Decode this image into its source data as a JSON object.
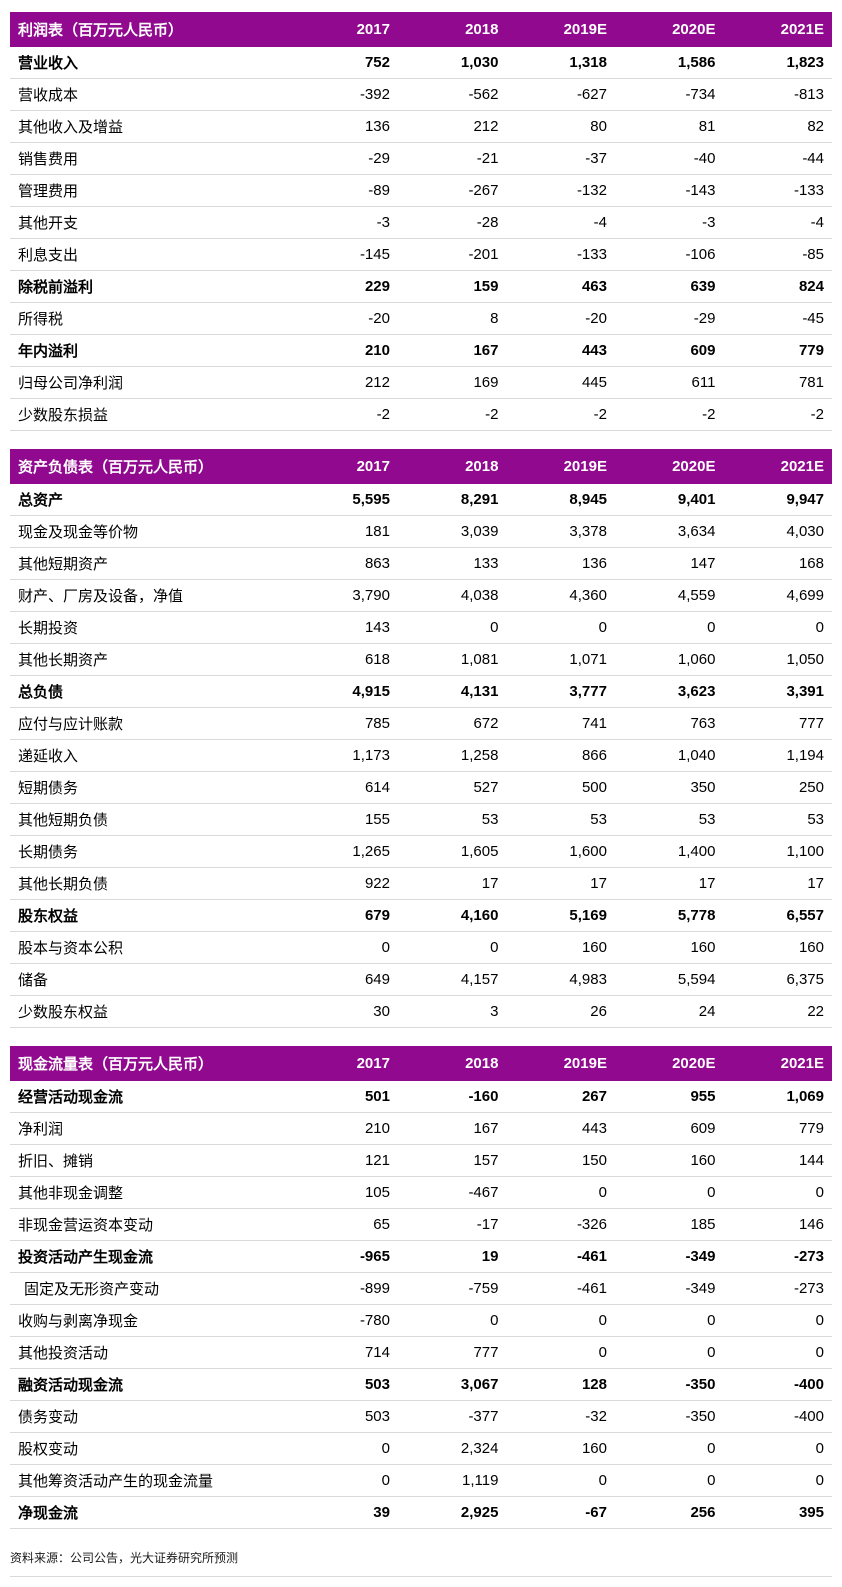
{
  "colors": {
    "header_bg": "#90098E",
    "header_text": "#FFFFFF",
    "row_border": "#D9D9D9"
  },
  "footer": {
    "source": "资料来源：公司公告，光大证券研究所预测"
  },
  "tables": [
    {
      "title": "利润表（百万元人民币）",
      "columns": [
        "2017",
        "2018",
        "2019E",
        "2020E",
        "2021E"
      ],
      "rows": [
        {
          "label": "营业收入",
          "values": [
            "752",
            "1,030",
            "1,318",
            "1,586",
            "1,823"
          ],
          "bold": true
        },
        {
          "label": "营收成本",
          "values": [
            "-392",
            "-562",
            "-627",
            "-734",
            "-813"
          ],
          "bold": false
        },
        {
          "label": "其他收入及增益",
          "values": [
            "136",
            "212",
            "80",
            "81",
            "82"
          ],
          "bold": false
        },
        {
          "label": "销售费用",
          "values": [
            "-29",
            "-21",
            "-37",
            "-40",
            "-44"
          ],
          "bold": false
        },
        {
          "label": "管理费用",
          "values": [
            "-89",
            "-267",
            "-132",
            "-143",
            "-133"
          ],
          "bold": false
        },
        {
          "label": "其他开支",
          "values": [
            "-3",
            "-28",
            "-4",
            "-3",
            "-4"
          ],
          "bold": false
        },
        {
          "label": "利息支出",
          "values": [
            "-145",
            "-201",
            "-133",
            "-106",
            "-85"
          ],
          "bold": false
        },
        {
          "label": "除税前溢利",
          "values": [
            "229",
            "159",
            "463",
            "639",
            "824"
          ],
          "bold": true
        },
        {
          "label": "所得税",
          "values": [
            "-20",
            "8",
            "-20",
            "-29",
            "-45"
          ],
          "bold": false
        },
        {
          "label": "年内溢利",
          "values": [
            "210",
            "167",
            "443",
            "609",
            "779"
          ],
          "bold": true
        },
        {
          "label": "归母公司净利润",
          "values": [
            "212",
            "169",
            "445",
            "611",
            "781"
          ],
          "bold": false
        },
        {
          "label": "少数股东损益",
          "values": [
            "-2",
            "-2",
            "-2",
            "-2",
            "-2"
          ],
          "bold": false
        }
      ]
    },
    {
      "title": "资产负债表（百万元人民币）",
      "columns": [
        "2017",
        "2018",
        "2019E",
        "2020E",
        "2021E"
      ],
      "rows": [
        {
          "label": "总资产",
          "values": [
            "5,595",
            "8,291",
            "8,945",
            "9,401",
            "9,947"
          ],
          "bold": true
        },
        {
          "label": "现金及现金等价物",
          "values": [
            "181",
            "3,039",
            "3,378",
            "3,634",
            "4,030"
          ],
          "bold": false
        },
        {
          "label": "其他短期资产",
          "values": [
            "863",
            "133",
            "136",
            "147",
            "168"
          ],
          "bold": false
        },
        {
          "label": "财产、厂房及设备，净值",
          "values": [
            "3,790",
            "4,038",
            "4,360",
            "4,559",
            "4,699"
          ],
          "bold": false
        },
        {
          "label": "长期投资",
          "values": [
            "143",
            "0",
            "0",
            "0",
            "0"
          ],
          "bold": false
        },
        {
          "label": "其他长期资产",
          "values": [
            "618",
            "1,081",
            "1,071",
            "1,060",
            "1,050"
          ],
          "bold": false
        },
        {
          "label": "总负债",
          "values": [
            "4,915",
            "4,131",
            "3,777",
            "3,623",
            "3,391"
          ],
          "bold": true
        },
        {
          "label": "应付与应计账款",
          "values": [
            "785",
            "672",
            "741",
            "763",
            "777"
          ],
          "bold": false
        },
        {
          "label": "递延收入",
          "values": [
            "1,173",
            "1,258",
            "866",
            "1,040",
            "1,194"
          ],
          "bold": false
        },
        {
          "label": "短期债务",
          "values": [
            "614",
            "527",
            "500",
            "350",
            "250"
          ],
          "bold": false
        },
        {
          "label": "其他短期负债",
          "values": [
            "155",
            "53",
            "53",
            "53",
            "53"
          ],
          "bold": false
        },
        {
          "label": "长期债务",
          "values": [
            "1,265",
            "1,605",
            "1,600",
            "1,400",
            "1,100"
          ],
          "bold": false
        },
        {
          "label": "其他长期负债",
          "values": [
            "922",
            "17",
            "17",
            "17",
            "17"
          ],
          "bold": false
        },
        {
          "label": "股东权益",
          "values": [
            "679",
            "4,160",
            "5,169",
            "5,778",
            "6,557"
          ],
          "bold": true
        },
        {
          "label": "股本与资本公积",
          "values": [
            "0",
            "0",
            "160",
            "160",
            "160"
          ],
          "bold": false
        },
        {
          "label": "储备",
          "values": [
            "649",
            "4,157",
            "4,983",
            "5,594",
            "6,375"
          ],
          "bold": false
        },
        {
          "label": "少数股东权益",
          "values": [
            "30",
            "3",
            "26",
            "24",
            "22"
          ],
          "bold": false
        }
      ]
    },
    {
      "title": "现金流量表（百万元人民币）",
      "columns": [
        "2017",
        "2018",
        "2019E",
        "2020E",
        "2021E"
      ],
      "rows": [
        {
          "label": "经营活动现金流",
          "values": [
            "501",
            "-160",
            "267",
            "955",
            "1,069"
          ],
          "bold": true
        },
        {
          "label": "净利润",
          "values": [
            "210",
            "167",
            "443",
            "609",
            "779"
          ],
          "bold": false
        },
        {
          "label": "折旧、摊销",
          "values": [
            "121",
            "157",
            "150",
            "160",
            "144"
          ],
          "bold": false
        },
        {
          "label": "其他非现金调整",
          "values": [
            "105",
            "-467",
            "0",
            "0",
            "0"
          ],
          "bold": false
        },
        {
          "label": "非现金营运资本变动",
          "values": [
            "65",
            "-17",
            "-326",
            "185",
            "146"
          ],
          "bold": false
        },
        {
          "label": "投资活动产生现金流",
          "values": [
            "-965",
            "19",
            "-461",
            "-349",
            "-273"
          ],
          "bold": true
        },
        {
          "label": "固定及无形资产变动",
          "values": [
            "-899",
            "-759",
            "-461",
            "-349",
            "-273"
          ],
          "bold": false,
          "indent": true
        },
        {
          "label": "收购与剥离净现金",
          "values": [
            "-780",
            "0",
            "0",
            "0",
            "0"
          ],
          "bold": false
        },
        {
          "label": "其他投资活动",
          "values": [
            "714",
            "777",
            "0",
            "0",
            "0"
          ],
          "bold": false
        },
        {
          "label": "融资活动现金流",
          "values": [
            "503",
            "3,067",
            "128",
            "-350",
            "-400"
          ],
          "bold": true
        },
        {
          "label": "债务变动",
          "values": [
            "503",
            "-377",
            "-32",
            "-350",
            "-400"
          ],
          "bold": false
        },
        {
          "label": "股权变动",
          "values": [
            "0",
            "2,324",
            "160",
            "0",
            "0"
          ],
          "bold": false
        },
        {
          "label": "其他筹资活动产生的现金流量",
          "values": [
            "0",
            "1,119",
            "0",
            "0",
            "0"
          ],
          "bold": false
        },
        {
          "label": "净现金流",
          "values": [
            "39",
            "2,925",
            "-67",
            "256",
            "395"
          ],
          "bold": true
        }
      ]
    }
  ]
}
